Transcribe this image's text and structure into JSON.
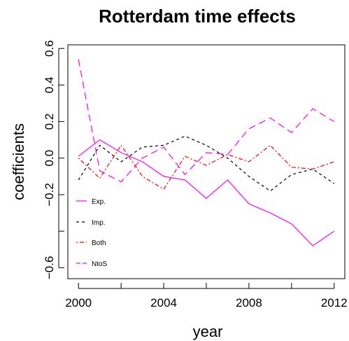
{
  "chart_data": {
    "type": "line",
    "title": "Rotterdam time effects",
    "xlabel": "year",
    "ylabel": "coefficients",
    "xlim": [
      1999.5,
      2012.5
    ],
    "ylim": [
      -0.66,
      0.62
    ],
    "x_ticks": [
      2000,
      2002,
      2004,
      2006,
      2008,
      2010,
      2012
    ],
    "x_tick_labels": [
      "2000",
      "",
      "2004",
      "",
      "2008",
      "",
      "2012"
    ],
    "y_ticks": [
      -0.6,
      -0.4,
      -0.2,
      0.0,
      0.2,
      0.4,
      0.6
    ],
    "y_tick_labels": [
      "−0.6",
      "",
      "−0.2",
      "0.0",
      "0.2",
      "0.4",
      "0.6"
    ],
    "grid": false,
    "legend_position": "left",
    "x": [
      2000,
      2001,
      2002,
      2003,
      2004,
      2005,
      2006,
      2007,
      2008,
      2009,
      2010,
      2011,
      2012
    ],
    "series": [
      {
        "name": "Exp.",
        "color": "#ff00ff",
        "dash": "solid",
        "values": [
          0.01,
          0.1,
          0.03,
          -0.02,
          -0.1,
          -0.12,
          -0.22,
          -0.12,
          -0.25,
          -0.3,
          -0.36,
          -0.48,
          -0.4
        ]
      },
      {
        "name": "Imp.",
        "color": "#000000",
        "dash": "dashed",
        "values": [
          -0.12,
          0.07,
          -0.02,
          0.06,
          0.07,
          0.12,
          0.07,
          0.0,
          -0.1,
          -0.18,
          -0.09,
          -0.06,
          -0.14
        ]
      },
      {
        "name": "Both",
        "color": "#ff0000",
        "dash": "dotdash",
        "values": [
          0.0,
          -0.11,
          0.07,
          -0.1,
          -0.17,
          0.01,
          -0.04,
          0.02,
          -0.02,
          0.07,
          -0.05,
          -0.06,
          -0.02
        ]
      },
      {
        "name": "NtoS",
        "color": "#ff00ff",
        "dash": "longdash",
        "values": [
          0.54,
          -0.07,
          -0.13,
          0.0,
          0.06,
          -0.09,
          0.03,
          0.02,
          0.16,
          0.22,
          0.14,
          0.27,
          0.2
        ]
      }
    ]
  }
}
